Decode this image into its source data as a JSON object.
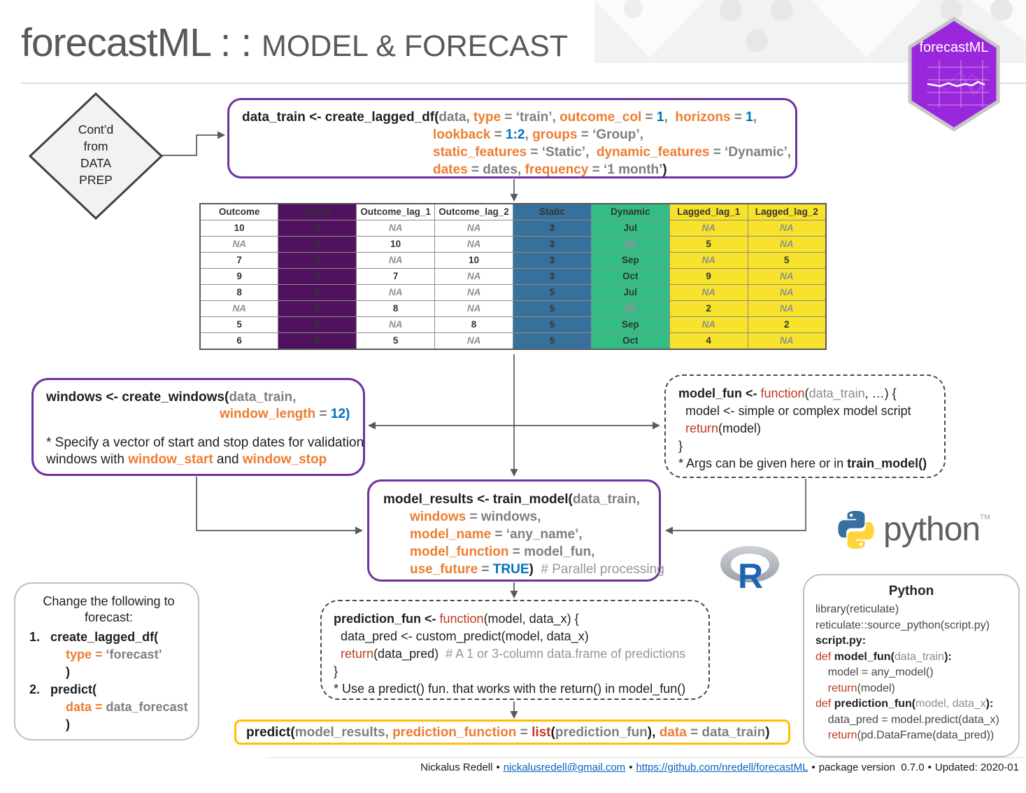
{
  "header": {
    "brand": "forecastML : : ",
    "subtitle": "MODEL & FORECAST"
  },
  "hex_logo": {
    "label": "forecastML"
  },
  "python_logo": {
    "wordmark": "python",
    "tm": "TM"
  },
  "r_logo": {
    "letter": "R"
  },
  "diamond": {
    "lines": [
      {
        "seg": [
          {
            "t": "Cont’d",
            "c": "t"
          }
        ]
      },
      {
        "seg": [
          {
            "t": "from",
            "c": "t"
          }
        ]
      },
      {
        "seg": [
          {
            "t": "DATA",
            "c": "t"
          }
        ]
      },
      {
        "seg": [
          {
            "t": "PREP",
            "c": "t"
          }
        ]
      }
    ]
  },
  "colors": {
    "accent_purple": "#7030A0",
    "accent_gold": "#FFC000",
    "arg_orange": "#ED7D31",
    "value_blue": "#0070C0",
    "keyword_red": "#BE3B1F",
    "table_purple": "#50125E",
    "table_blue": "#37719B",
    "table_green": "#33BD84",
    "table_yellow": "#F7E32B",
    "hex_purple": "#9B27DC"
  },
  "table": {
    "headers": [
      {
        "label": "Outcome",
        "style": "white"
      },
      {
        "label": "Group",
        "style": "purple"
      },
      {
        "label": "Outcome_lag_1",
        "style": "white"
      },
      {
        "label": "Outcome_lag_2",
        "style": "white"
      },
      {
        "label": "Static",
        "style": "blue"
      },
      {
        "label": "Dynamic",
        "style": "green"
      },
      {
        "label": "Lagged_lag_1",
        "style": "yellow"
      },
      {
        "label": "Lagged_lag_2",
        "style": "yellow"
      }
    ],
    "rows": [
      [
        "10",
        "A",
        "NA",
        "NA",
        "3",
        "Jul",
        "NA",
        "NA"
      ],
      [
        "NA",
        "A",
        "10",
        "NA",
        "3",
        "NA",
        "5",
        "NA"
      ],
      [
        "7",
        "A",
        "NA",
        "10",
        "3",
        "Sep",
        "NA",
        "5"
      ],
      [
        "9",
        "A",
        "7",
        "NA",
        "3",
        "Oct",
        "9",
        "NA"
      ],
      [
        "8",
        "B",
        "NA",
        "NA",
        "5",
        "Jul",
        "NA",
        "NA"
      ],
      [
        "NA",
        "B",
        "8",
        "NA",
        "5",
        "NA",
        "2",
        "NA"
      ],
      [
        "5",
        "B",
        "NA",
        "8",
        "5",
        "Sep",
        "NA",
        "2"
      ],
      [
        "6",
        "B",
        "5",
        "NA",
        "5",
        "Oct",
        "4",
        "NA"
      ]
    ]
  },
  "boxes": {
    "create_lagged_df": {
      "lines": [
        {
          "seg": [
            {
              "t": "data_train <- create_lagged_df(",
              "c": "k"
            },
            {
              "t": "data, ",
              "c": "g"
            },
            {
              "t": "type",
              "c": "o"
            },
            {
              "t": " = ‘train’, ",
              "c": "g"
            },
            {
              "t": "outcome_col",
              "c": "o"
            },
            {
              "t": " = ",
              "c": "g"
            },
            {
              "t": "1",
              "c": "b"
            },
            {
              "t": ",  ",
              "c": "g"
            },
            {
              "t": "horizons",
              "c": "o"
            },
            {
              "t": " = ",
              "c": "g"
            },
            {
              "t": "1",
              "c": "b"
            },
            {
              "t": ",",
              "c": "g"
            }
          ]
        },
        {
          "ind": 1,
          "seg": [
            {
              "t": "lookback",
              "c": "o"
            },
            {
              "t": " = ",
              "c": "g"
            },
            {
              "t": "1:2",
              "c": "b"
            },
            {
              "t": ", ",
              "c": "g"
            },
            {
              "t": "groups",
              "c": "o"
            },
            {
              "t": " = ‘Group’,",
              "c": "g"
            }
          ]
        },
        {
          "ind": 1,
          "seg": [
            {
              "t": "static_features",
              "c": "o"
            },
            {
              "t": " = ‘Static’,  ",
              "c": "g"
            },
            {
              "t": "dynamic_features",
              "c": "o"
            },
            {
              "t": " = ‘Dynamic’,",
              "c": "g"
            }
          ]
        },
        {
          "ind": 1,
          "seg": [
            {
              "t": "dates",
              "c": "o"
            },
            {
              "t": " = dates, ",
              "c": "g"
            },
            {
              "t": "frequency",
              "c": "o"
            },
            {
              "t": " = ‘1 month’",
              "c": "g"
            },
            {
              "t": ")",
              "c": "k"
            }
          ]
        }
      ]
    },
    "create_windows": {
      "lines": [
        {
          "seg": [
            {
              "t": "windows <- create_windows(",
              "c": "k"
            },
            {
              "t": "data_train,",
              "c": "g"
            }
          ]
        },
        {
          "ind": 1,
          "seg": [
            {
              "t": "window_length",
              "c": "o"
            },
            {
              "t": " = ",
              "c": "g"
            },
            {
              "t": "12)",
              "c": "b"
            }
          ]
        },
        {
          "seg": []
        },
        {
          "seg": [
            {
              "t": "* Specify a vector of start and stop dates for validation",
              "c": "t"
            }
          ]
        },
        {
          "seg": [
            {
              "t": "windows with ",
              "c": "t"
            },
            {
              "t": "window_start",
              "c": "o"
            },
            {
              "t": " and ",
              "c": "t"
            },
            {
              "t": "window_stop",
              "c": "o"
            }
          ]
        }
      ]
    },
    "model_fun": {
      "lines": [
        {
          "seg": [
            {
              "t": "model_fun <- ",
              "c": "k"
            },
            {
              "t": "function",
              "c": "r"
            },
            {
              "t": "(",
              "c": "t"
            },
            {
              "t": "data_train",
              "c": "gr"
            },
            {
              "t": ", …) {",
              "c": "t"
            }
          ]
        },
        {
          "seg": [
            {
              "t": "  model <- simple or complex model script",
              "c": "t"
            }
          ]
        },
        {
          "seg": [
            {
              "t": "  return",
              "c": "r"
            },
            {
              "t": "(model)",
              "c": "t"
            }
          ]
        },
        {
          "seg": [
            {
              "t": "}",
              "c": "t"
            }
          ]
        },
        {
          "seg": [
            {
              "t": "* Args can be given here or in ",
              "c": "t"
            },
            {
              "t": "train_model()",
              "c": "k"
            }
          ]
        }
      ]
    },
    "train_model": {
      "lines": [
        {
          "seg": [
            {
              "t": "model_results <- train_model(",
              "c": "k"
            },
            {
              "t": "data_train,",
              "c": "g"
            }
          ]
        },
        {
          "ind": 1,
          "seg": [
            {
              "t": "windows",
              "c": "o"
            },
            {
              "t": " = windows,",
              "c": "g"
            }
          ]
        },
        {
          "ind": 1,
          "seg": [
            {
              "t": "model_name",
              "c": "o"
            },
            {
              "t": " = ‘any_name’,",
              "c": "g"
            }
          ]
        },
        {
          "ind": 1,
          "seg": [
            {
              "t": "model_function",
              "c": "o"
            },
            {
              "t": " = model_fun,",
              "c": "g"
            }
          ]
        },
        {
          "ind": 1,
          "seg": [
            {
              "t": "use_future",
              "c": "o"
            },
            {
              "t": " = ",
              "c": "g"
            },
            {
              "t": "TRUE",
              "c": "b"
            },
            {
              "t": ")",
              "c": "k"
            },
            {
              "t": "  # Parallel processing",
              "c": "c"
            }
          ]
        }
      ]
    },
    "prediction_fun": {
      "lines": [
        {
          "seg": [
            {
              "t": "prediction_fun <- ",
              "c": "k"
            },
            {
              "t": "function",
              "c": "r"
            },
            {
              "t": "(model, data_x) {",
              "c": "t"
            }
          ]
        },
        {
          "seg": [
            {
              "t": "  data_pred <- custom_predict(model, data_x)",
              "c": "t"
            }
          ]
        },
        {
          "seg": [
            {
              "t": "  return",
              "c": "r"
            },
            {
              "t": "(data_pred)",
              "c": "t"
            },
            {
              "t": "  # A 1 or 3-column data.frame of predictions",
              "c": "c"
            }
          ]
        },
        {
          "seg": [
            {
              "t": "}",
              "c": "t"
            }
          ]
        },
        {
          "seg": [
            {
              "t": "* Use a predict() fun. that works with the return() in model_fun()",
              "c": "t"
            }
          ]
        }
      ]
    },
    "change": {
      "header_lines": [
        {
          "seg": [
            {
              "t": "Change the following to",
              "c": "t"
            }
          ]
        },
        {
          "seg": [
            {
              "t": "forecast:",
              "c": "t"
            }
          ]
        }
      ],
      "lines": [
        {
          "seg": [
            {
              "t": "1.   ",
              "c": "k"
            },
            {
              "t": "create_lagged_df(",
              "c": "k"
            }
          ]
        },
        {
          "ind": 1,
          "seg": [
            {
              "t": "type = ",
              "c": "o"
            },
            {
              "t": "‘forecast’",
              "c": "g"
            }
          ]
        },
        {
          "ind": 1,
          "seg": [
            {
              "t": ")",
              "c": "k"
            }
          ]
        },
        {
          "seg": [
            {
              "t": "2.   ",
              "c": "k"
            },
            {
              "t": "predict(",
              "c": "k"
            }
          ]
        },
        {
          "ind": 1,
          "seg": [
            {
              "t": "data = ",
              "c": "o"
            },
            {
              "t": "data_forecast",
              "c": "g"
            }
          ]
        },
        {
          "ind": 1,
          "seg": [
            {
              "t": ")",
              "c": "k"
            }
          ]
        }
      ]
    },
    "predict_call": {
      "lines": [
        {
          "seg": [
            {
              "t": "predict(",
              "c": "k"
            },
            {
              "t": "model_results, ",
              "c": "g"
            },
            {
              "t": "prediction_function",
              "c": "o"
            },
            {
              "t": " = ",
              "c": "g"
            },
            {
              "t": "list",
              "c": "rb"
            },
            {
              "t": "(",
              "c": "k"
            },
            {
              "t": "prediction_fun",
              "c": "g"
            },
            {
              "t": "), ",
              "c": "k"
            },
            {
              "t": "data",
              "c": "o"
            },
            {
              "t": " = data_train",
              "c": "g"
            },
            {
              "t": ")",
              "c": "k"
            }
          ]
        }
      ]
    },
    "python": {
      "title": "Python",
      "lines": [
        {
          "seg": [
            {
              "t": "library(reticulate)",
              "c": "t2"
            }
          ]
        },
        {
          "seg": [
            {
              "t": "reticulate::source_python(script.py)",
              "c": "t2"
            }
          ]
        },
        {
          "seg": [
            {
              "t": "script.py:",
              "c": "k"
            }
          ]
        },
        {
          "seg": [
            {
              "t": "def ",
              "c": "r"
            },
            {
              "t": "model_fun(",
              "c": "k"
            },
            {
              "t": "data_train",
              "c": "gr"
            },
            {
              "t": "):",
              "c": "k"
            }
          ]
        },
        {
          "seg": [
            {
              "t": "    model = any_model()",
              "c": "t2"
            }
          ]
        },
        {
          "seg": [
            {
              "t": "    return",
              "c": "r"
            },
            {
              "t": "(model)",
              "c": "t2"
            }
          ]
        },
        {
          "seg": [
            {
              "t": "def ",
              "c": "r"
            },
            {
              "t": "prediction_fun(",
              "c": "k"
            },
            {
              "t": "model, data_x",
              "c": "gr"
            },
            {
              "t": "):",
              "c": "k"
            }
          ]
        },
        {
          "seg": [
            {
              "t": "    data_pred = model.predict(data_x)",
              "c": "t2"
            }
          ]
        },
        {
          "seg": [
            {
              "t": "    return",
              "c": "r"
            },
            {
              "t": "(pd.DataFrame(data_pred))",
              "c": "t2"
            }
          ]
        }
      ]
    }
  },
  "footer": {
    "name": "Nickalus Redell",
    "bullet": "•",
    "email": "nickalusredell@gmail.com",
    "github": "https://github.com/nredell/forecastML",
    "version": "package version  0.7.0",
    "updated": "Updated: 2020-01"
  }
}
